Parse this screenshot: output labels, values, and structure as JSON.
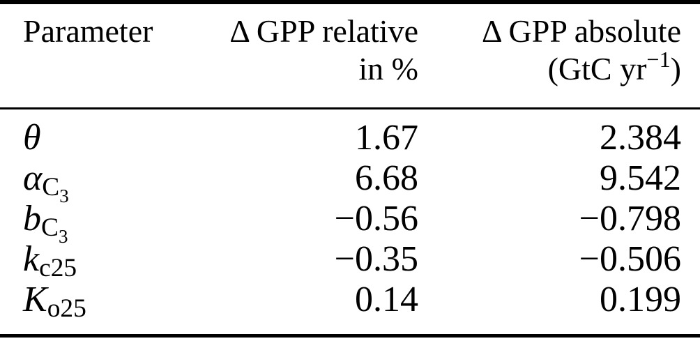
{
  "table": {
    "columns": {
      "param": "Parameter",
      "relative_line1": "Δ GPP relative",
      "relative_line2": "in %",
      "absolute_line1": "Δ GPP absolute",
      "absolute_unit_pre": "(GtC yr",
      "absolute_unit_sup": "−1",
      "absolute_unit_post": ")"
    },
    "rows": [
      {
        "param": {
          "base": "θ",
          "sub": "",
          "subsub": ""
        },
        "relative": "1.67",
        "absolute": "2.384"
      },
      {
        "param": {
          "base": "α",
          "sub": "C",
          "subsub": "3"
        },
        "relative": "6.68",
        "absolute": "9.542"
      },
      {
        "param": {
          "base": "b",
          "sub": "C",
          "subsub": "3"
        },
        "relative": "−0.56",
        "absolute": "−0.798"
      },
      {
        "param": {
          "base": "k",
          "sub": "c25",
          "subsub": ""
        },
        "relative": "−0.35",
        "absolute": "−0.506"
      },
      {
        "param": {
          "base": "K",
          "sub": "o25",
          "subsub": ""
        },
        "relative": "0.14",
        "absolute": "0.199"
      }
    ]
  },
  "colors": {
    "text": "#000000",
    "background": "#ffffff",
    "rule": "#000000"
  }
}
